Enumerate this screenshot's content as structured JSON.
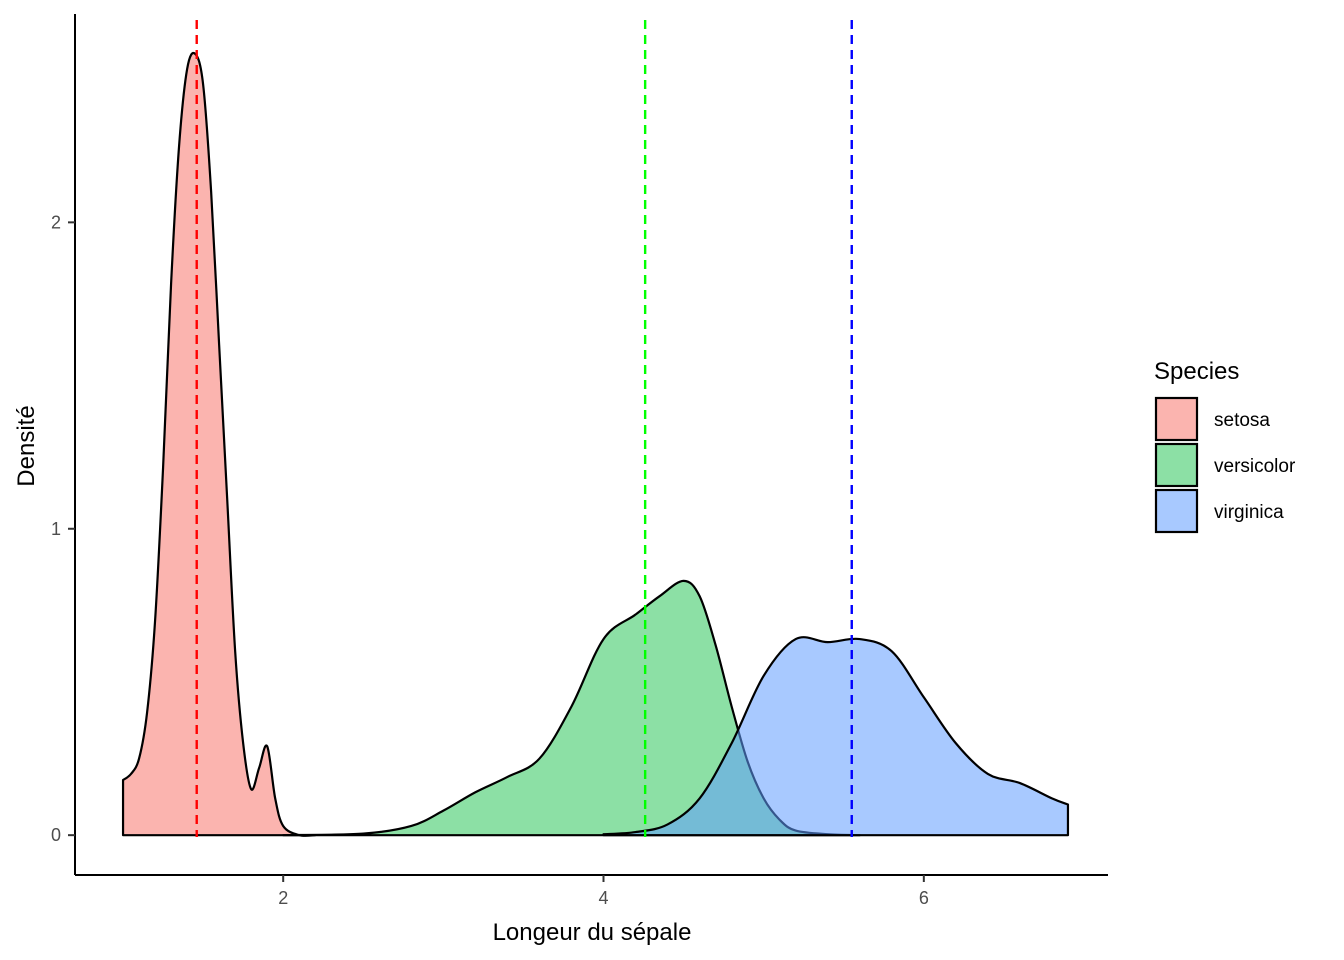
{
  "chart_data": {
    "type": "area",
    "subtype": "density",
    "title": "",
    "xlabel": "Longeur du sépale",
    "ylabel": "Densité",
    "xlim": [
      0.7,
      7.15
    ],
    "ylim": [
      -0.13,
      2.68
    ],
    "x_ticks": [
      2,
      4,
      6
    ],
    "y_ticks": [
      0,
      1,
      2
    ],
    "grid": false,
    "legend": {
      "title": "Species",
      "position": "right"
    },
    "series": [
      {
        "name": "setosa",
        "fill": "#F8766D",
        "fill_opacity": 0.55,
        "points": [
          [
            1.0,
            0.18
          ],
          [
            1.05,
            0.2
          ],
          [
            1.1,
            0.25
          ],
          [
            1.15,
            0.4
          ],
          [
            1.2,
            0.7
          ],
          [
            1.25,
            1.2
          ],
          [
            1.3,
            1.8
          ],
          [
            1.35,
            2.25
          ],
          [
            1.4,
            2.5
          ],
          [
            1.45,
            2.55
          ],
          [
            1.5,
            2.45
          ],
          [
            1.55,
            2.1
          ],
          [
            1.6,
            1.6
          ],
          [
            1.65,
            1.1
          ],
          [
            1.7,
            0.6
          ],
          [
            1.75,
            0.3
          ],
          [
            1.8,
            0.15
          ],
          [
            1.85,
            0.22
          ],
          [
            1.9,
            0.29
          ],
          [
            1.95,
            0.12
          ],
          [
            2.0,
            0.03
          ],
          [
            2.1,
            0.0
          ],
          [
            2.2,
            0.0
          ]
        ]
      },
      {
        "name": "versicolor",
        "fill": "#00BA38",
        "fill_opacity": 0.45,
        "points": [
          [
            2.0,
            0.0
          ],
          [
            2.5,
            0.005
          ],
          [
            2.8,
            0.03
          ],
          [
            3.0,
            0.08
          ],
          [
            3.2,
            0.14
          ],
          [
            3.4,
            0.19
          ],
          [
            3.6,
            0.25
          ],
          [
            3.8,
            0.42
          ],
          [
            4.0,
            0.64
          ],
          [
            4.2,
            0.72
          ],
          [
            4.35,
            0.78
          ],
          [
            4.5,
            0.83
          ],
          [
            4.6,
            0.78
          ],
          [
            4.7,
            0.62
          ],
          [
            4.8,
            0.42
          ],
          [
            4.9,
            0.24
          ],
          [
            5.0,
            0.12
          ],
          [
            5.1,
            0.05
          ],
          [
            5.2,
            0.015
          ],
          [
            5.4,
            0.003
          ],
          [
            5.6,
            0.0
          ]
        ]
      },
      {
        "name": "virginica",
        "fill": "#619CFF",
        "fill_opacity": 0.55,
        "points": [
          [
            4.0,
            0.003
          ],
          [
            4.2,
            0.01
          ],
          [
            4.4,
            0.035
          ],
          [
            4.6,
            0.12
          ],
          [
            4.8,
            0.3
          ],
          [
            5.0,
            0.52
          ],
          [
            5.2,
            0.64
          ],
          [
            5.4,
            0.63
          ],
          [
            5.6,
            0.64
          ],
          [
            5.8,
            0.6
          ],
          [
            6.0,
            0.45
          ],
          [
            6.2,
            0.3
          ],
          [
            6.4,
            0.2
          ],
          [
            6.6,
            0.17
          ],
          [
            6.8,
            0.12
          ],
          [
            6.9,
            0.1
          ]
        ]
      }
    ],
    "vlines": [
      {
        "series": "setosa",
        "x": 1.46,
        "color": "#FF0000"
      },
      {
        "series": "versicolor",
        "x": 4.26,
        "color": "#00FF00"
      },
      {
        "series": "virginica",
        "x": 5.55,
        "color": "#0000FF"
      }
    ]
  }
}
